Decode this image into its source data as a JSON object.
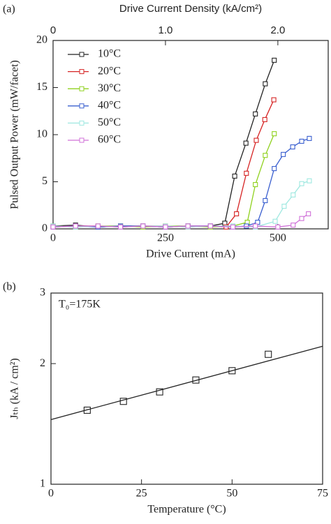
{
  "chart_data": [
    {
      "type": "line",
      "panel": "(a)",
      "xlabel": "Drive Current (mA)",
      "ylabel": "Pulsed Output Power (mW/facet)",
      "x2label": "Drive Current Density (kA/cm²)",
      "xlim": [
        0,
        612
      ],
      "xticks": [
        0,
        250,
        500
      ],
      "x2lim": [
        0,
        2.448
      ],
      "x2ticks": [
        0,
        {
          "value": 1,
          "label": "1.0"
        },
        {
          "value": 2,
          "label": "2.0"
        }
      ],
      "ylim": [
        0,
        20
      ],
      "yticks": [
        0,
        5,
        10,
        15,
        20
      ],
      "legend": "upper left",
      "series": [
        {
          "name": "10°C",
          "color": "#222222",
          "x": [
            0,
            50,
            100,
            150,
            200,
            250,
            300,
            350,
            382,
            404,
            429,
            450,
            472,
            492
          ],
          "values": [
            0.3,
            0.4,
            0.2,
            0.3,
            0.3,
            0.2,
            0.3,
            0.3,
            0.6,
            5.6,
            9.1,
            12.2,
            15.4,
            17.9
          ]
        },
        {
          "name": "20°C",
          "color": "#d62424",
          "x": [
            0,
            50,
            100,
            150,
            200,
            250,
            300,
            350,
            385,
            408,
            430,
            452,
            471,
            491
          ],
          "values": [
            0.2,
            0.3,
            0.3,
            0.2,
            0.3,
            0.3,
            0.2,
            0.3,
            0.2,
            1.6,
            5.9,
            9.4,
            11.6,
            13.7
          ]
        },
        {
          "name": "30°C",
          "color": "#8fd11e",
          "x": [
            0,
            50,
            100,
            150,
            200,
            250,
            300,
            350,
            400,
            432,
            450,
            472,
            492
          ],
          "values": [
            0.3,
            0.2,
            0.3,
            0.3,
            0.2,
            0.3,
            0.3,
            0.2,
            0.3,
            0.7,
            4.7,
            7.8,
            10.1
          ]
        },
        {
          "name": "40°C",
          "color": "#3a5fcf",
          "x": [
            0,
            50,
            100,
            150,
            200,
            250,
            300,
            350,
            400,
            430,
            455,
            472,
            492,
            512,
            533,
            553,
            570
          ],
          "values": [
            0.2,
            0.3,
            0.2,
            0.3,
            0.3,
            0.2,
            0.3,
            0.3,
            0.2,
            0.3,
            0.7,
            3.0,
            6.4,
            7.9,
            8.7,
            9.3,
            9.6
          ]
        },
        {
          "name": "50°C",
          "color": "#9ee8e0",
          "x": [
            0,
            50,
            100,
            150,
            200,
            250,
            300,
            350,
            400,
            450,
            494,
            514,
            534,
            553,
            570
          ],
          "values": [
            0.3,
            0.2,
            0.3,
            0.2,
            0.3,
            0.3,
            0.2,
            0.3,
            0.3,
            0.2,
            0.8,
            2.4,
            3.6,
            4.8,
            5.1
          ]
        },
        {
          "name": "60°C",
          "color": "#d070d8",
          "x": [
            0,
            50,
            100,
            150,
            200,
            250,
            300,
            350,
            400,
            450,
            500,
            534,
            553,
            568
          ],
          "values": [
            0.2,
            0.3,
            0.3,
            0.2,
            0.3,
            0.2,
            0.3,
            0.3,
            0.2,
            0.3,
            0.2,
            0.4,
            1.1,
            1.6
          ]
        }
      ]
    },
    {
      "type": "scatter",
      "panel": "(b)",
      "xlabel": "Temperature (°C)",
      "ylabel": "Jₜₕ (kA / cm²)",
      "annotation": "T₀=175K",
      "xlim": [
        0,
        75
      ],
      "xticks": [
        0,
        25,
        50,
        75
      ],
      "ylim": [
        1,
        3
      ],
      "yticks": [
        1,
        2,
        3
      ],
      "log_y": true,
      "series": [
        {
          "color": "#222222",
          "x": [
            10,
            20,
            30,
            40,
            50,
            60
          ],
          "values": [
            1.53,
            1.61,
            1.7,
            1.82,
            1.92,
            2.11
          ]
        }
      ],
      "fit": {
        "color": "#222222",
        "x": [
          0,
          75
        ],
        "values": [
          1.45,
          2.21
        ]
      }
    }
  ]
}
